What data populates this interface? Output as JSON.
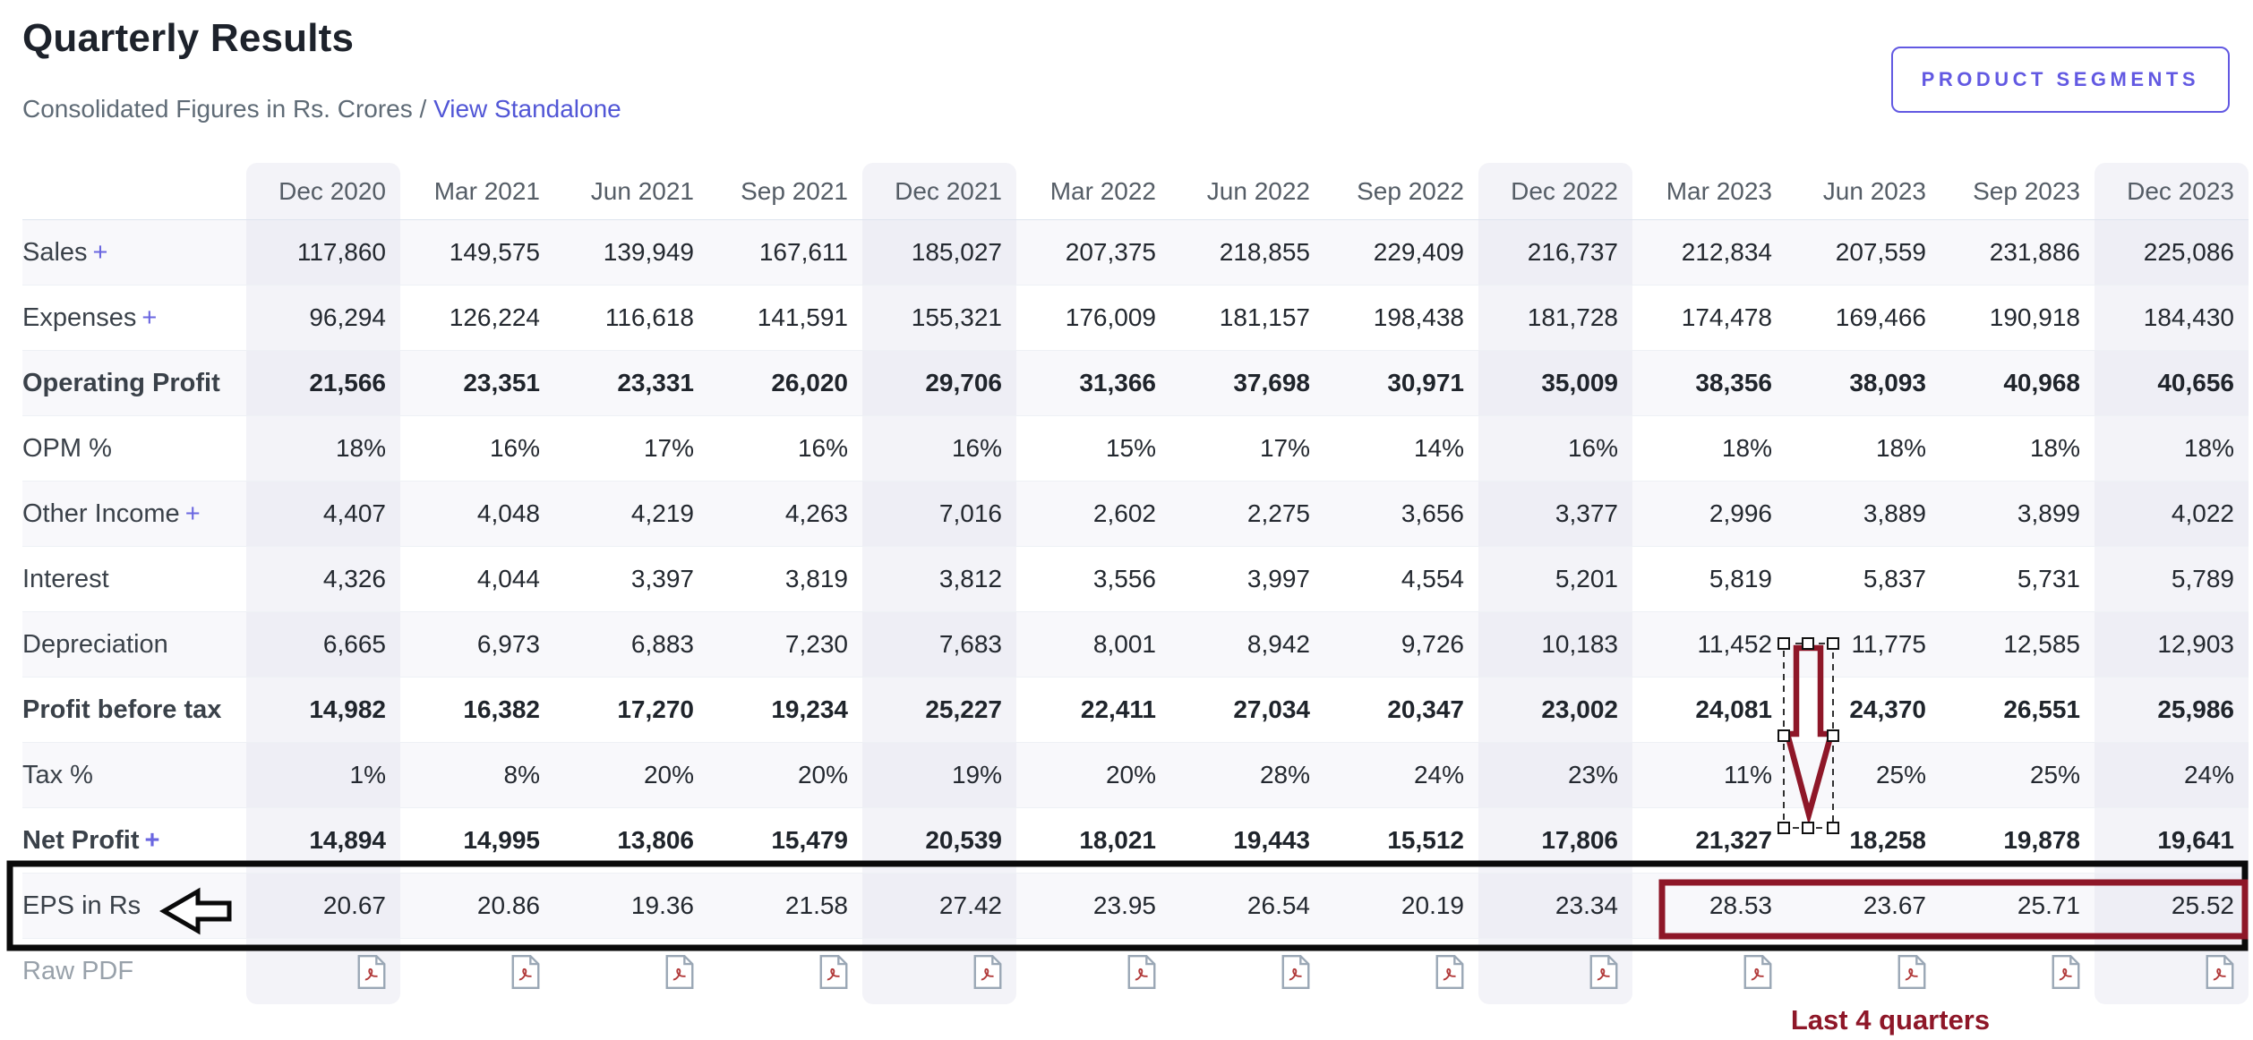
{
  "header": {
    "title": "Quarterly Results",
    "subtitle_prefix": "Consolidated Figures in Rs. Crores /",
    "standalone_link": "View Standalone",
    "segments_button": "PRODUCT SEGMENTS"
  },
  "table": {
    "columns": [
      "Dec 2020",
      "Mar 2021",
      "Jun 2021",
      "Sep 2021",
      "Dec 2021",
      "Mar 2022",
      "Jun 2022",
      "Sep 2022",
      "Dec 2022",
      "Mar 2023",
      "Jun 2023",
      "Sep 2023",
      "Dec 2023"
    ],
    "highlighted_columns": [
      0,
      4,
      8,
      12
    ],
    "rows": [
      {
        "label": "Sales",
        "suffix": "+",
        "bold": false,
        "values": [
          "117,860",
          "149,575",
          "139,949",
          "167,611",
          "185,027",
          "207,375",
          "218,855",
          "229,409",
          "216,737",
          "212,834",
          "207,559",
          "231,886",
          "225,086"
        ]
      },
      {
        "label": "Expenses",
        "suffix": "+",
        "bold": false,
        "values": [
          "96,294",
          "126,224",
          "116,618",
          "141,591",
          "155,321",
          "176,009",
          "181,157",
          "198,438",
          "181,728",
          "174,478",
          "169,466",
          "190,918",
          "184,430"
        ]
      },
      {
        "label": "Operating Profit",
        "suffix": "",
        "bold": true,
        "values": [
          "21,566",
          "23,351",
          "23,331",
          "26,020",
          "29,706",
          "31,366",
          "37,698",
          "30,971",
          "35,009",
          "38,356",
          "38,093",
          "40,968",
          "40,656"
        ]
      },
      {
        "label": "OPM %",
        "suffix": "",
        "bold": false,
        "values": [
          "18%",
          "16%",
          "17%",
          "16%",
          "16%",
          "15%",
          "17%",
          "14%",
          "16%",
          "18%",
          "18%",
          "18%",
          "18%"
        ]
      },
      {
        "label": "Other Income",
        "suffix": "+",
        "bold": false,
        "values": [
          "4,407",
          "4,048",
          "4,219",
          "4,263",
          "7,016",
          "2,602",
          "2,275",
          "3,656",
          "3,377",
          "2,996",
          "3,889",
          "3,899",
          "4,022"
        ]
      },
      {
        "label": "Interest",
        "suffix": "",
        "bold": false,
        "values": [
          "4,326",
          "4,044",
          "3,397",
          "3,819",
          "3,812",
          "3,556",
          "3,997",
          "4,554",
          "5,201",
          "5,819",
          "5,837",
          "5,731",
          "5,789"
        ]
      },
      {
        "label": "Depreciation",
        "suffix": "",
        "bold": false,
        "values": [
          "6,665",
          "6,973",
          "6,883",
          "7,230",
          "7,683",
          "8,001",
          "8,942",
          "9,726",
          "10,183",
          "11,452",
          "11,775",
          "12,585",
          "12,903"
        ]
      },
      {
        "label": "Profit before tax",
        "suffix": "",
        "bold": true,
        "values": [
          "14,982",
          "16,382",
          "17,270",
          "19,234",
          "25,227",
          "22,411",
          "27,034",
          "20,347",
          "23,002",
          "24,081",
          "24,370",
          "26,551",
          "25,986"
        ]
      },
      {
        "label": "Tax %",
        "suffix": "",
        "bold": false,
        "values": [
          "1%",
          "8%",
          "20%",
          "20%",
          "19%",
          "20%",
          "28%",
          "24%",
          "23%",
          "11%",
          "25%",
          "25%",
          "24%"
        ]
      },
      {
        "label": "Net Profit",
        "suffix": "+",
        "bold": true,
        "values": [
          "14,894",
          "14,995",
          "13,806",
          "15,479",
          "20,539",
          "18,021",
          "19,443",
          "15,512",
          "17,806",
          "21,327",
          "18,258",
          "19,878",
          "19,641"
        ]
      },
      {
        "label": "EPS in Rs",
        "suffix": "",
        "bold": false,
        "values": [
          "20.67",
          "20.86",
          "19.36",
          "21.58",
          "27.42",
          "23.95",
          "26.54",
          "20.19",
          "23.34",
          "28.53",
          "23.67",
          "25.71",
          "25.52"
        ]
      }
    ],
    "raw_pdf_label": "Raw PDF"
  },
  "annotations": {
    "last4_label": "Last 4 quarters",
    "colors": {
      "maroon": "#8e1728",
      "black": "#0a0a0a"
    }
  },
  "colors": {
    "accent_indigo": "#6259e2",
    "link_blue": "#5156d6",
    "row_stripe": "#f8f8fb",
    "column_stripe": "#f3f3f8"
  }
}
